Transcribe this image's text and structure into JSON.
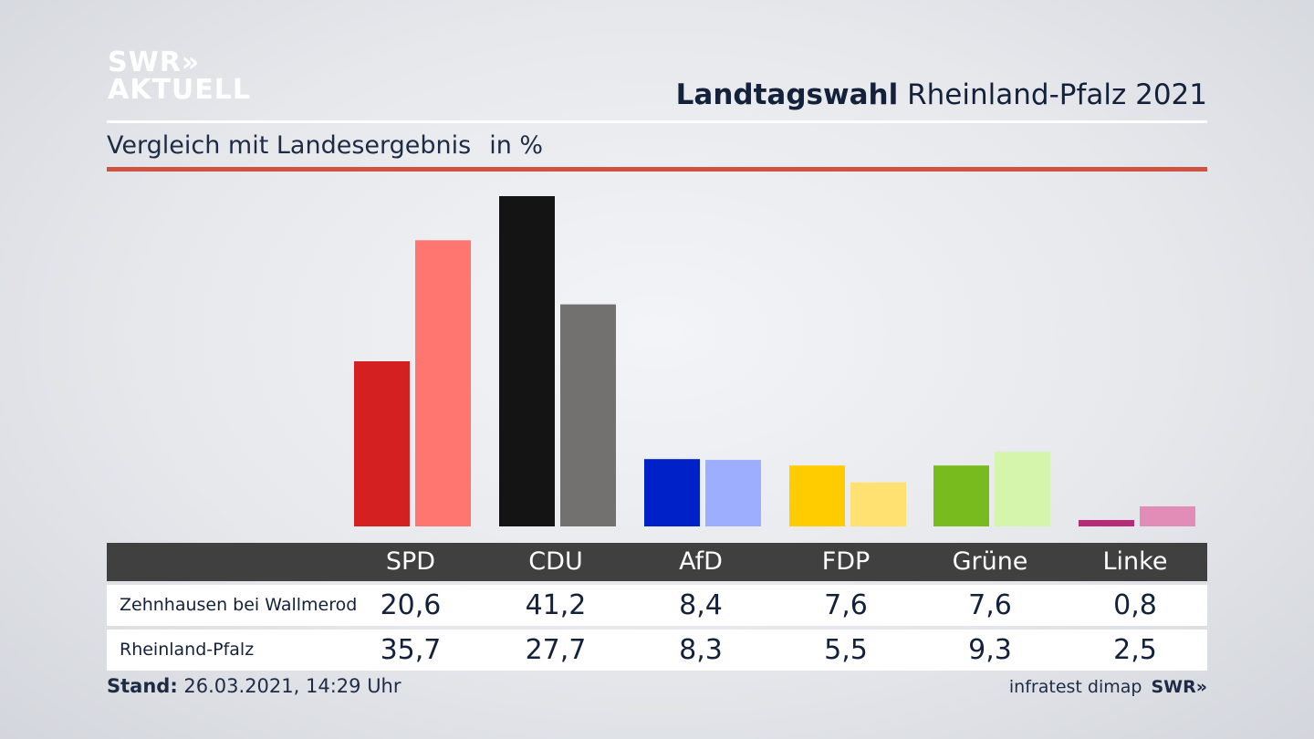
{
  "logo": {
    "line1": "SWR»",
    "line2": "AKTUELL"
  },
  "title": {
    "bold": "Landtagswahl",
    "rest": "Rheinland-Pfalz 2021"
  },
  "subtitle": {
    "text": "Vergleich mit Landesergebnis",
    "unit": "in %"
  },
  "chart_data": {
    "type": "bar",
    "categories": [
      "SPD",
      "CDU",
      "AfD",
      "FDP",
      "Grüne",
      "Linke"
    ],
    "series": [
      {
        "name": "Zehnhausen bei Wallmerod",
        "values": [
          20.6,
          41.2,
          8.4,
          7.6,
          7.6,
          0.8
        ],
        "colors": [
          "#d42020",
          "#141414",
          "#0020c8",
          "#ffcc00",
          "#77bb1e",
          "#b42c78"
        ]
      },
      {
        "name": "Rheinland-Pfalz",
        "values": [
          35.7,
          27.7,
          8.3,
          5.5,
          9.3,
          2.5
        ],
        "colors": [
          "#ff7570",
          "#727170",
          "#9eaeff",
          "#ffe172",
          "#d4f5ab",
          "#e28db8"
        ]
      }
    ],
    "value_labels": [
      [
        "20,6",
        "41,2",
        "8,4",
        "7,6",
        "7,6",
        "0,8"
      ],
      [
        "35,7",
        "27,7",
        "8,3",
        "5,5",
        "9,3",
        "2,5"
      ]
    ],
    "ylim": [
      0,
      41.2
    ],
    "grid": false
  },
  "footer": {
    "stand_label": "Stand:",
    "stand_value": "26.03.2021, 14:29 Uhr",
    "source": "infratest dimap",
    "source_logo": "SWR»"
  }
}
